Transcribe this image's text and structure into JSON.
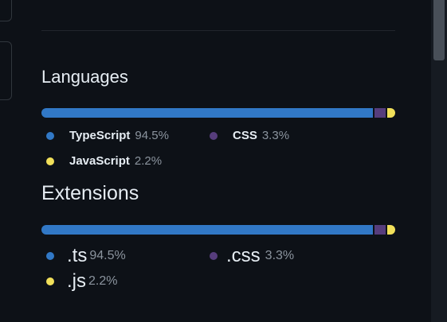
{
  "languages": {
    "title": "Languages",
    "items": [
      {
        "name": "TypeScript",
        "percent_label": "94.5%",
        "percent": 94.5,
        "color": "#3178c6"
      },
      {
        "name": "CSS",
        "percent_label": "3.3%",
        "percent": 3.3,
        "color": "#563d7c"
      },
      {
        "name": "JavaScript",
        "percent_label": "2.2%",
        "percent": 2.2,
        "color": "#f1e05a"
      }
    ]
  },
  "extensions": {
    "title": "Extensions",
    "items": [
      {
        "name": ".ts",
        "percent_label": "94.5%",
        "percent": 94.5,
        "color": "#3178c6"
      },
      {
        "name": ".css",
        "percent_label": "3.3%",
        "percent": 3.3,
        "color": "#563d7c"
      },
      {
        "name": ".js",
        "percent_label": "2.2%",
        "percent": 2.2,
        "color": "#f1e05a"
      }
    ]
  }
}
